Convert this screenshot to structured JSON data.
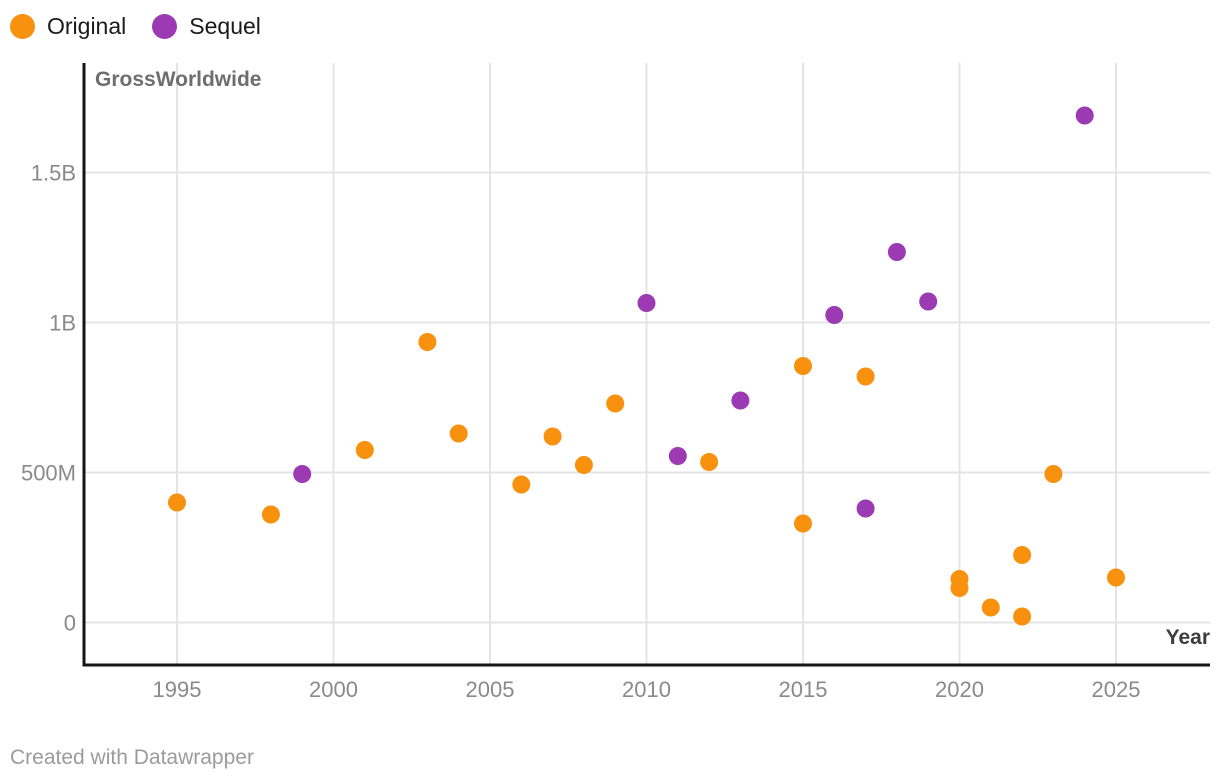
{
  "legend": {
    "items": [
      {
        "label": "Original",
        "color": "#F8910D"
      },
      {
        "label": "Sequel",
        "color": "#9C3AB4"
      }
    ]
  },
  "footer": {
    "credit": "Created with Datawrapper"
  },
  "colors": {
    "gridline": "#E4E4E4",
    "axis_line": "#141414",
    "tick_label": "#8A8A8A",
    "y_title": "#6E6E6E",
    "x_title": "#3D3D3D",
    "legend_text": "#1A1A1A",
    "credit_text": "#9B9B9B"
  },
  "chart_data": {
    "type": "scatter",
    "title": "",
    "xlabel": "Year",
    "ylabel": "GrossWorldwide",
    "value_unit": "USD millions",
    "grid": true,
    "legend_position": "top-left",
    "xlim": [
      1992,
      2028
    ],
    "ylim_millions": [
      -140,
      1865
    ],
    "x_ticks": [
      1995,
      2000,
      2005,
      2010,
      2015,
      2020,
      2025
    ],
    "y_ticks": [
      {
        "value": 0,
        "label": "0"
      },
      {
        "value": 500,
        "label": "500M"
      },
      {
        "value": 1000,
        "label": "1B"
      },
      {
        "value": 1500,
        "label": "1.5B"
      }
    ],
    "series": [
      {
        "name": "Original",
        "color": "#F8910D",
        "points": [
          [
            1995,
            400
          ],
          [
            1998,
            360
          ],
          [
            2001,
            575
          ],
          [
            2003,
            935
          ],
          [
            2004,
            630
          ],
          [
            2006,
            460
          ],
          [
            2007,
            620
          ],
          [
            2008,
            525
          ],
          [
            2009,
            730
          ],
          [
            2012,
            535
          ],
          [
            2015,
            855
          ],
          [
            2015,
            330
          ],
          [
            2017,
            820
          ],
          [
            2020,
            145
          ],
          [
            2020,
            115
          ],
          [
            2021,
            50
          ],
          [
            2022,
            225
          ],
          [
            2022,
            20
          ],
          [
            2023,
            495
          ],
          [
            2025,
            150
          ]
        ]
      },
      {
        "name": "Sequel",
        "color": "#9C3AB4",
        "points": [
          [
            1999,
            495
          ],
          [
            2010,
            1065
          ],
          [
            2011,
            555
          ],
          [
            2013,
            740
          ],
          [
            2016,
            1025
          ],
          [
            2017,
            380
          ],
          [
            2018,
            1235
          ],
          [
            2019,
            1070
          ],
          [
            2024,
            1690
          ]
        ]
      }
    ]
  }
}
